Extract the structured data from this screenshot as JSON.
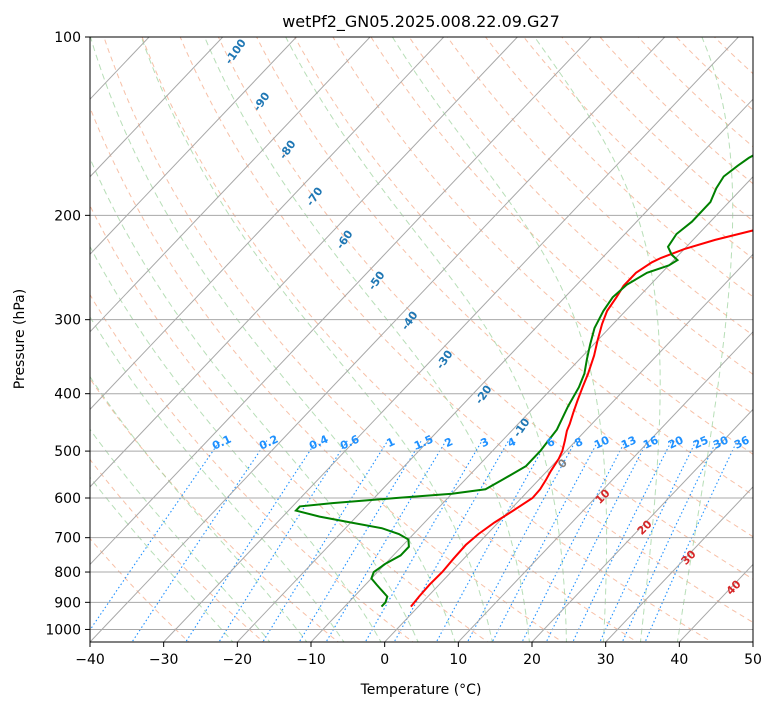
{
  "chart_data": {
    "type": "line",
    "title": "wetPf2_GN05.2025.008.22.09.G27",
    "xlabel": "Temperature (°C)",
    "ylabel": "Pressure (hPa)",
    "xlim": [
      -40,
      50
    ],
    "ylim": [
      1050,
      100
    ],
    "y_scale": "log",
    "grid": true,
    "x_ticks": [
      -40,
      -30,
      -20,
      -10,
      0,
      10,
      20,
      30,
      40,
      50
    ],
    "y_ticks": [
      100,
      200,
      300,
      400,
      500,
      600,
      700,
      800,
      900,
      1000
    ],
    "series": [
      {
        "color": "#ff0000",
        "points": [
          [
            -1,
            915
          ],
          [
            -1.2,
            880
          ],
          [
            -1.3,
            840
          ],
          [
            -1.2,
            800
          ],
          [
            -1.4,
            760
          ],
          [
            -1.5,
            720
          ],
          [
            -1.2,
            690
          ],
          [
            -0.5,
            660
          ],
          [
            0.5,
            630
          ],
          [
            1.5,
            600
          ],
          [
            1.4,
            580
          ],
          [
            1,
            560
          ],
          [
            0.5,
            540
          ],
          [
            0,
            515
          ],
          [
            -0.5,
            500
          ],
          [
            -1.5,
            480
          ],
          [
            -2.5,
            462
          ],
          [
            -3,
            450
          ],
          [
            -4,
            430
          ],
          [
            -5,
            410
          ],
          [
            -6,
            390
          ],
          [
            -7,
            370
          ],
          [
            -8.5,
            345
          ],
          [
            -10,
            325
          ],
          [
            -11.5,
            305
          ],
          [
            -12.5,
            290
          ],
          [
            -13,
            275
          ],
          [
            -13.5,
            263
          ],
          [
            -13.5,
            250
          ],
          [
            -12.7,
            240
          ],
          [
            -12,
            236
          ],
          [
            -10,
            228
          ],
          [
            -7,
            220
          ],
          [
            -3,
            212
          ],
          [
            0,
            206
          ],
          [
            3,
            200
          ],
          [
            5,
            195
          ],
          [
            7,
            190
          ],
          [
            9,
            185
          ],
          [
            11,
            181
          ],
          [
            13,
            177
          ],
          [
            14,
            174
          ],
          [
            15,
            168
          ],
          [
            16,
            160
          ],
          [
            17,
            150
          ],
          [
            18,
            142
          ],
          [
            19,
            136
          ],
          [
            20,
            131
          ],
          [
            22,
            125
          ],
          [
            25,
            118
          ],
          [
            28,
            112
          ],
          [
            31,
            106
          ],
          [
            34,
            100
          ]
        ]
      },
      {
        "color": "#008000",
        "points": [
          [
            -5,
            915
          ],
          [
            -5,
            900
          ],
          [
            -5.5,
            880
          ],
          [
            -7,
            860
          ],
          [
            -8.5,
            840
          ],
          [
            -10,
            820
          ],
          [
            -10.5,
            800
          ],
          [
            -10,
            775
          ],
          [
            -9,
            750
          ],
          [
            -9,
            725
          ],
          [
            -10,
            705
          ],
          [
            -12,
            690
          ],
          [
            -15,
            675
          ],
          [
            -20,
            660
          ],
          [
            -25,
            645
          ],
          [
            -29,
            630
          ],
          [
            -29,
            620
          ],
          [
            -25,
            612
          ],
          [
            -17,
            600
          ],
          [
            -10,
            590
          ],
          [
            -6,
            580
          ],
          [
            -5,
            560
          ],
          [
            -3.5,
            530
          ],
          [
            -3.5,
            500
          ],
          [
            -4,
            460
          ],
          [
            -5.5,
            420
          ],
          [
            -6.5,
            390
          ],
          [
            -7.5,
            370
          ],
          [
            -9,
            350
          ],
          [
            -10.5,
            330
          ],
          [
            -12,
            310
          ],
          [
            -13,
            290
          ],
          [
            -13.5,
            275
          ],
          [
            -13.2,
            262
          ],
          [
            -12,
            250
          ],
          [
            -10,
            243
          ],
          [
            -9.5,
            238
          ],
          [
            -11,
            233
          ],
          [
            -12.5,
            226
          ],
          [
            -13,
            215
          ],
          [
            -12.5,
            205
          ],
          [
            -12.5,
            190
          ],
          [
            -13.5,
            180
          ],
          [
            -14,
            172
          ],
          [
            -13.5,
            165
          ],
          [
            -13,
            160
          ],
          [
            -11.5,
            152
          ],
          [
            -10,
            146
          ],
          [
            -8,
            140
          ],
          [
            -6,
            132
          ],
          [
            -4.5,
            122
          ],
          [
            -3.5,
            115
          ],
          [
            -2.5,
            106
          ],
          [
            -1.5,
            100
          ]
        ]
      }
    ],
    "dry_adiabat_labels": [
      "-100",
      "-90",
      "-80",
      "-70",
      "-60",
      "-50",
      "-40",
      "-30",
      "-20",
      "-10"
    ],
    "dry_adiabat_label_color": "#1f77b4",
    "mixing_ratio_labels": [
      "0.1",
      "0.2",
      "0.4",
      "0.6",
      "1",
      "1.5",
      "2",
      "3",
      "4",
      "6",
      "8",
      "10",
      "13",
      "16",
      "20",
      "25",
      "30",
      "36"
    ],
    "mixing_ratio_label_color": "#1e90ff",
    "moist_adiabat_labels": [
      "0",
      "10",
      "20",
      "30",
      "40"
    ],
    "moist_adiabat_label_colors": [
      "#808080",
      "#d62728",
      "#d62728",
      "#d62728",
      "#d62728"
    ]
  }
}
